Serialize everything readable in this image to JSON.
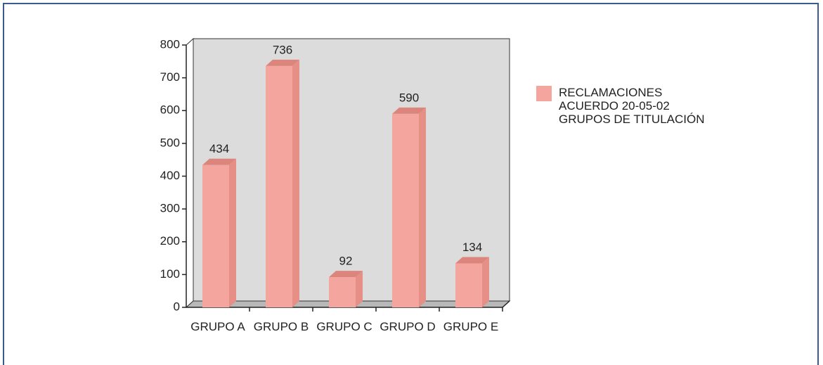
{
  "chart_data": {
    "type": "bar3d",
    "categories": [
      "GRUPO A",
      "GRUPO B",
      "GRUPO C",
      "GRUPO D",
      "GRUPO E"
    ],
    "series": [
      {
        "name": "RECLAMACIONES\nACUERDO 20-05-02\nGRUPOS DE TITULACIÓN",
        "color": "#f4a59e",
        "values": [
          434,
          736,
          92,
          590,
          134
        ]
      }
    ],
    "ylim": [
      0,
      800
    ],
    "yticks": [
      0,
      100,
      200,
      300,
      400,
      500,
      600,
      700,
      800
    ],
    "legend": "right"
  }
}
